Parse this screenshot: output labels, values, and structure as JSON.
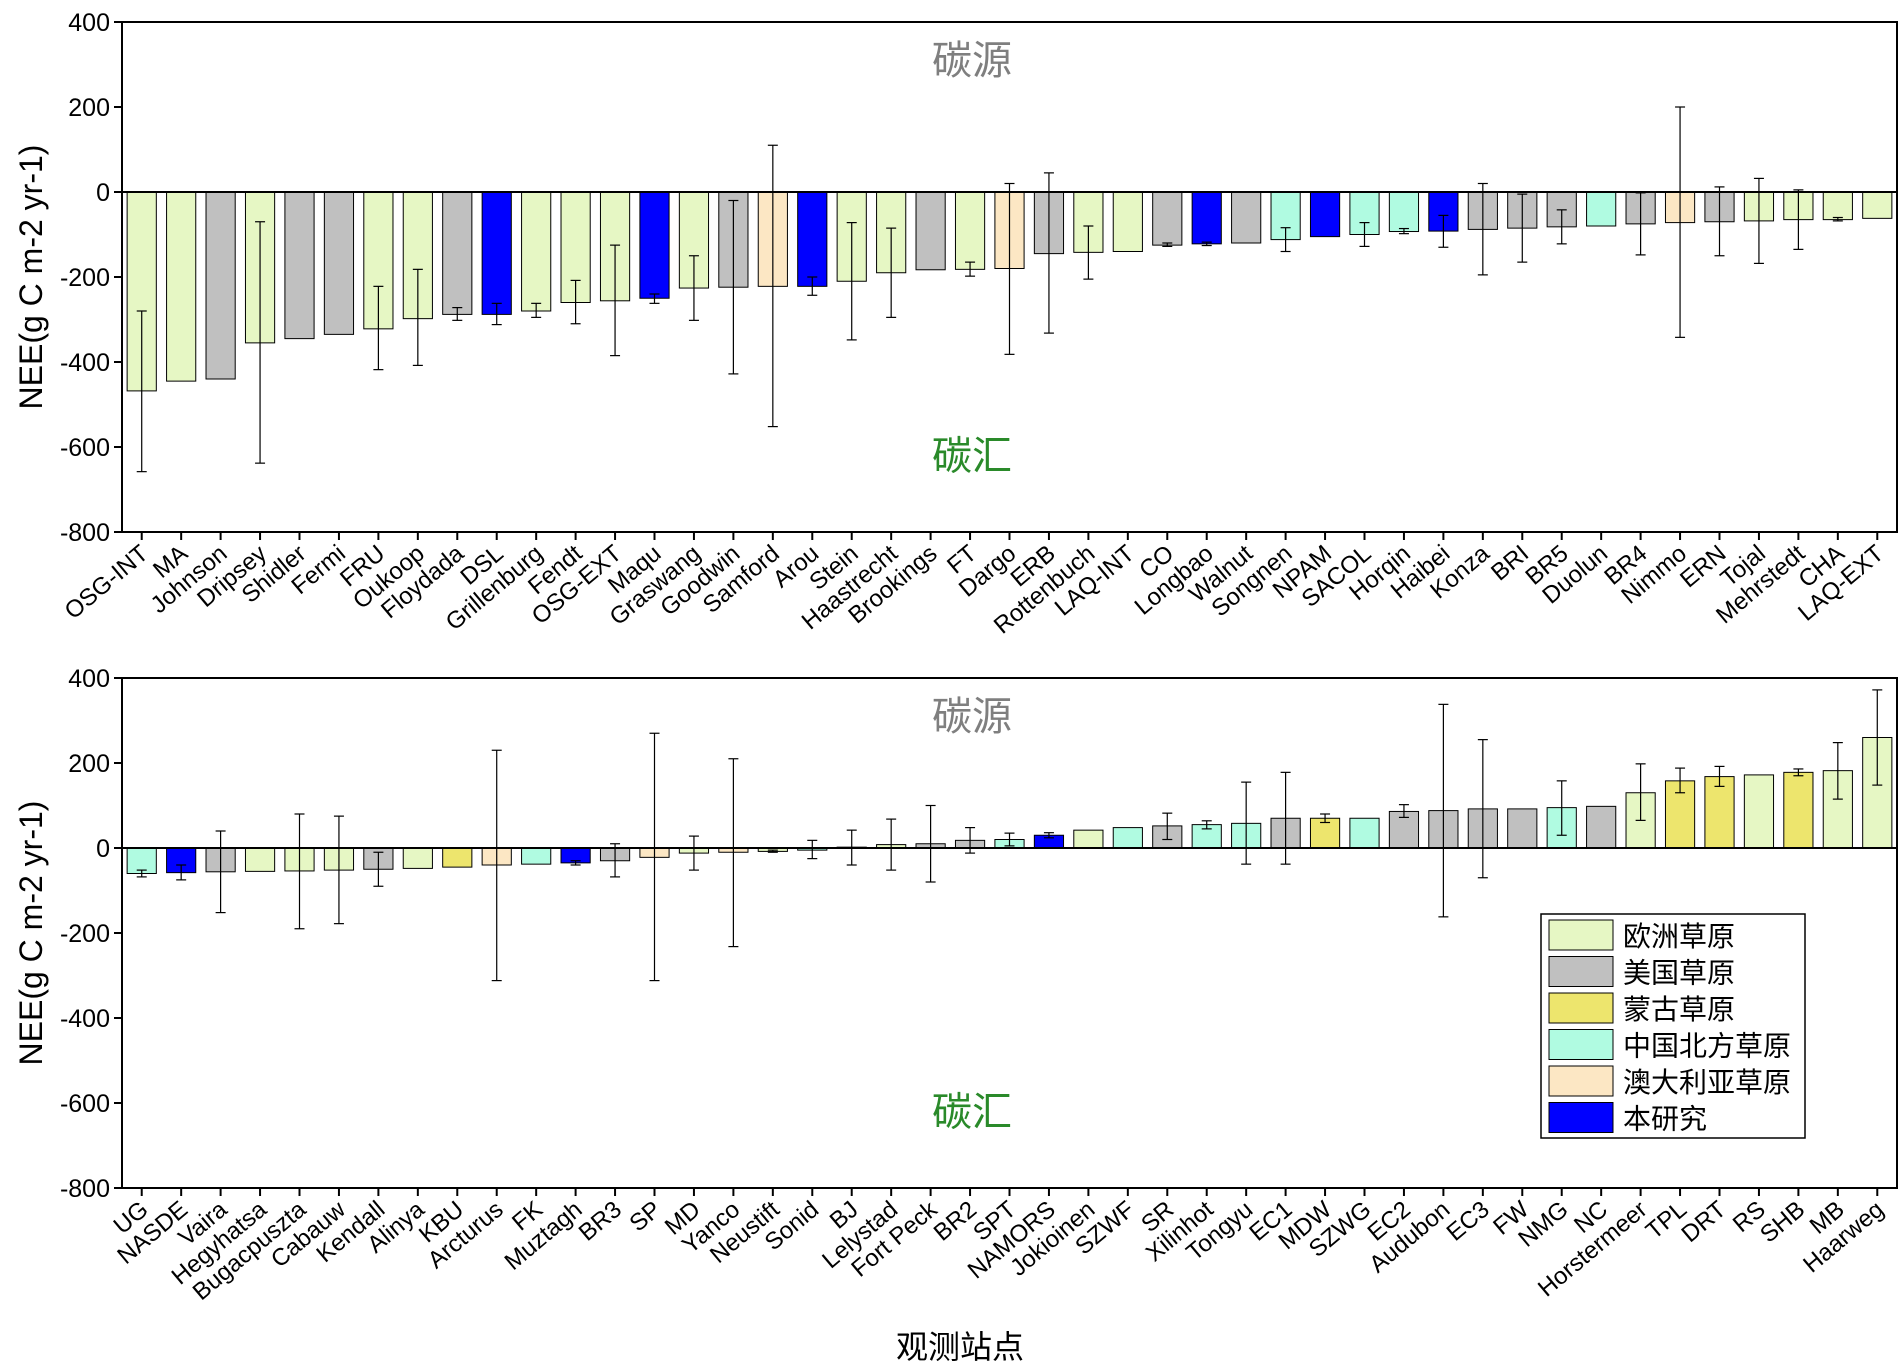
{
  "chart_data": {
    "type": "bar",
    "xlabel": "观测站点",
    "ylabel": "NEE(g C m-2 yr-1)",
    "ylim": [
      -800,
      400
    ],
    "yticks": [
      400,
      200,
      0,
      -200,
      -400,
      -600,
      -800
    ],
    "annotations": {
      "source": "碳源",
      "sink": "碳汇"
    },
    "legend_placement": "lower-right of bottom panel",
    "groups": [
      {
        "key": "eu",
        "name": "欧洲草原",
        "color": "#e6f7c4"
      },
      {
        "key": "us",
        "name": "美国草原",
        "color": "#c0c0c0"
      },
      {
        "key": "mn",
        "name": "蒙古草原",
        "color": "#ede56d"
      },
      {
        "key": "cn",
        "name": "中国北方草原",
        "color": "#b0fbe1"
      },
      {
        "key": "au",
        "name": "澳大利亚草原",
        "color": "#fce7c4"
      },
      {
        "key": "st",
        "name": "本研究",
        "color": "#0000ff"
      }
    ],
    "panels": [
      {
        "bars": [
          {
            "site": "OSG-INT",
            "g": "eu",
            "v": -468,
            "lo": -658,
            "hi": -280
          },
          {
            "site": "MA",
            "g": "eu",
            "v": -445
          },
          {
            "site": "Johnson",
            "g": "us",
            "v": -440
          },
          {
            "site": "Dripsey",
            "g": "eu",
            "v": -355,
            "lo": -638,
            "hi": -70
          },
          {
            "site": "Shidler",
            "g": "us",
            "v": -345
          },
          {
            "site": "Fermi",
            "g": "us",
            "v": -335
          },
          {
            "site": "FRU",
            "g": "eu",
            "v": -322,
            "lo": -418,
            "hi": -222
          },
          {
            "site": "Oukoop",
            "g": "eu",
            "v": -298,
            "lo": -408,
            "hi": -182
          },
          {
            "site": "Floydada",
            "g": "us",
            "v": -288,
            "lo": -302,
            "hi": -272
          },
          {
            "site": "DSL",
            "g": "st",
            "v": -288,
            "lo": -312,
            "hi": -262
          },
          {
            "site": "Grillenburg",
            "g": "eu",
            "v": -280,
            "lo": -295,
            "hi": -262
          },
          {
            "site": "Fendt",
            "g": "eu",
            "v": -260,
            "lo": -310,
            "hi": -208
          },
          {
            "site": "OSG-EXT",
            "g": "eu",
            "v": -256,
            "lo": -385,
            "hi": -125
          },
          {
            "site": "Maqu",
            "g": "st",
            "v": -250,
            "lo": -262,
            "hi": -240
          },
          {
            "site": "Graswang",
            "g": "eu",
            "v": -226,
            "lo": -302,
            "hi": -150
          },
          {
            "site": "Goodwin",
            "g": "us",
            "v": -224,
            "lo": -428,
            "hi": -20
          },
          {
            "site": "Samford",
            "g": "au",
            "v": -222,
            "lo": -552,
            "hi": 110
          },
          {
            "site": "Arou",
            "g": "st",
            "v": -222,
            "lo": -243,
            "hi": -200
          },
          {
            "site": "Stein",
            "g": "eu",
            "v": -210,
            "lo": -348,
            "hi": -72
          },
          {
            "site": "Haastrecht",
            "g": "eu",
            "v": -190,
            "lo": -295,
            "hi": -85
          },
          {
            "site": "Brookings",
            "g": "us",
            "v": -183
          },
          {
            "site": "FT",
            "g": "eu",
            "v": -182,
            "lo": -198,
            "hi": -165
          },
          {
            "site": "Dargo",
            "g": "au",
            "v": -180,
            "lo": -382,
            "hi": 20
          },
          {
            "site": "ERB",
            "g": "us",
            "v": -145,
            "lo": -332,
            "hi": 45
          },
          {
            "site": "Rottenbuch",
            "g": "eu",
            "v": -142,
            "lo": -205,
            "hi": -80
          },
          {
            "site": "LAQ-INT",
            "g": "eu",
            "v": -140
          },
          {
            "site": "CO",
            "g": "us",
            "v": -125,
            "lo": -128,
            "hi": -120
          },
          {
            "site": "Longbao",
            "g": "st",
            "v": -122,
            "lo": -126,
            "hi": -118
          },
          {
            "site": "Walnut",
            "g": "us",
            "v": -120
          },
          {
            "site": "Songnen",
            "g": "cn",
            "v": -112,
            "lo": -140,
            "hi": -84
          },
          {
            "site": "NPAM",
            "g": "st",
            "v": -105
          },
          {
            "site": "SACOL",
            "g": "cn",
            "v": -100,
            "lo": -128,
            "hi": -72
          },
          {
            "site": "Horqin",
            "g": "cn",
            "v": -93,
            "lo": -98,
            "hi": -86
          },
          {
            "site": "Haibei",
            "g": "st",
            "v": -92,
            "lo": -130,
            "hi": -55
          },
          {
            "site": "Konza",
            "g": "us",
            "v": -88,
            "lo": -195,
            "hi": 20
          },
          {
            "site": "BRI",
            "g": "us",
            "v": -85,
            "lo": -165,
            "hi": -5
          },
          {
            "site": "BR5",
            "g": "us",
            "v": -82,
            "lo": -122,
            "hi": -42
          },
          {
            "site": "Duolun",
            "g": "cn",
            "v": -80
          },
          {
            "site": "BR4",
            "g": "us",
            "v": -75,
            "lo": -148,
            "hi": -2
          },
          {
            "site": "Nimmo",
            "g": "au",
            "v": -72,
            "lo": -342,
            "hi": 200
          },
          {
            "site": "ERN",
            "g": "us",
            "v": -70,
            "lo": -150,
            "hi": 12
          },
          {
            "site": "Tojal",
            "g": "eu",
            "v": -68,
            "lo": -168,
            "hi": 32
          },
          {
            "site": "Mehrstedt",
            "g": "eu",
            "v": -65,
            "lo": -135,
            "hi": 5
          },
          {
            "site": "CHA",
            "g": "eu",
            "v": -65,
            "lo": -68,
            "hi": -60
          },
          {
            "site": "LAQ-EXT",
            "g": "eu",
            "v": -62
          }
        ]
      },
      {
        "bars": [
          {
            "site": "UG",
            "g": "cn",
            "v": -60,
            "lo": -68,
            "hi": -52
          },
          {
            "site": "NASDE",
            "g": "st",
            "v": -58,
            "lo": -75,
            "hi": -40
          },
          {
            "site": "Vaira",
            "g": "us",
            "v": -56,
            "lo": -152,
            "hi": 40
          },
          {
            "site": "Hegyhatsa",
            "g": "eu",
            "v": -55
          },
          {
            "site": "Bugacpuszta",
            "g": "eu",
            "v": -54,
            "lo": -190,
            "hi": 80
          },
          {
            "site": "Cabauw",
            "g": "eu",
            "v": -52,
            "lo": -178,
            "hi": 75
          },
          {
            "site": "Kendall",
            "g": "us",
            "v": -50,
            "lo": -90,
            "hi": -10
          },
          {
            "site": "Alinya",
            "g": "eu",
            "v": -48
          },
          {
            "site": "KBU",
            "g": "mn",
            "v": -45
          },
          {
            "site": "Arcturus",
            "g": "au",
            "v": -40,
            "lo": -312,
            "hi": 230
          },
          {
            "site": "FK",
            "g": "cn",
            "v": -38
          },
          {
            "site": "Muztagh",
            "g": "st",
            "v": -35,
            "lo": -40,
            "hi": -30
          },
          {
            "site": "BR3",
            "g": "us",
            "v": -30,
            "lo": -68,
            "hi": 10
          },
          {
            "site": "SP",
            "g": "au",
            "v": -22,
            "lo": -312,
            "hi": 270
          },
          {
            "site": "MD",
            "g": "eu",
            "v": -12,
            "lo": -52,
            "hi": 28
          },
          {
            "site": "Yanco",
            "g": "au",
            "v": -10,
            "lo": -232,
            "hi": 210
          },
          {
            "site": "Neustift",
            "g": "eu",
            "v": -8,
            "lo": -10,
            "hi": -5
          },
          {
            "site": "Sonid",
            "g": "cn",
            "v": -5,
            "lo": -25,
            "hi": 18
          },
          {
            "site": "BJ",
            "g": "eu",
            "v": 2,
            "lo": -40,
            "hi": 42
          },
          {
            "site": "Lelystad",
            "g": "eu",
            "v": 8,
            "lo": -52,
            "hi": 68
          },
          {
            "site": "Fort Peck",
            "g": "us",
            "v": 10,
            "lo": -80,
            "hi": 100
          },
          {
            "site": "BR2",
            "g": "us",
            "v": 18,
            "lo": -12,
            "hi": 48
          },
          {
            "site": "SPT",
            "g": "cn",
            "v": 20,
            "lo": 5,
            "hi": 35
          },
          {
            "site": "NAMORS",
            "g": "st",
            "v": 30,
            "lo": 24,
            "hi": 36
          },
          {
            "site": "Jokioinen",
            "g": "eu",
            "v": 42
          },
          {
            "site": "SZWF",
            "g": "cn",
            "v": 48
          },
          {
            "site": "SR",
            "g": "us",
            "v": 52,
            "lo": 20,
            "hi": 82
          },
          {
            "site": "Xilinhot",
            "g": "cn",
            "v": 55,
            "lo": 45,
            "hi": 64
          },
          {
            "site": "Tongyu",
            "g": "cn",
            "v": 58,
            "lo": -38,
            "hi": 155
          },
          {
            "site": "EC1",
            "g": "us",
            "v": 70,
            "lo": -38,
            "hi": 178
          },
          {
            "site": "MDW",
            "g": "mn",
            "v": 70,
            "lo": 60,
            "hi": 80
          },
          {
            "site": "SZWG",
            "g": "cn",
            "v": 70
          },
          {
            "site": "EC2",
            "g": "us",
            "v": 86,
            "lo": 72,
            "hi": 102
          },
          {
            "site": "Audubon",
            "g": "us",
            "v": 88,
            "lo": -162,
            "hi": 338
          },
          {
            "site": "EC3",
            "g": "us",
            "v": 92,
            "lo": -70,
            "hi": 255
          },
          {
            "site": "FW",
            "g": "us",
            "v": 92
          },
          {
            "site": "NMG",
            "g": "cn",
            "v": 95,
            "lo": 30,
            "hi": 158
          },
          {
            "site": "NC",
            "g": "us",
            "v": 98
          },
          {
            "site": "Horstermeer",
            "g": "eu",
            "v": 130,
            "lo": 65,
            "hi": 198
          },
          {
            "site": "TPL",
            "g": "mn",
            "v": 158,
            "lo": 130,
            "hi": 188
          },
          {
            "site": "DRT",
            "g": "mn",
            "v": 168,
            "lo": 145,
            "hi": 192
          },
          {
            "site": "RS",
            "g": "eu",
            "v": 172
          },
          {
            "site": "SHB",
            "g": "mn",
            "v": 178,
            "lo": 170,
            "hi": 186
          },
          {
            "site": "MB",
            "g": "eu",
            "v": 182,
            "lo": 115,
            "hi": 248
          },
          {
            "site": "Haarweg",
            "g": "eu",
            "v": 260,
            "lo": 148,
            "hi": 372
          }
        ]
      }
    ]
  }
}
